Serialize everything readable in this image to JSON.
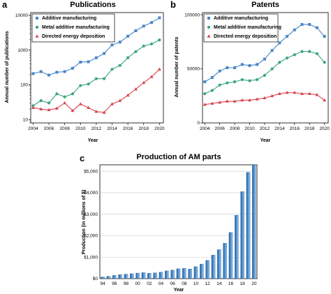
{
  "chart_data": [
    {
      "panel": "a",
      "type": "line",
      "title": "Publications",
      "xlabel": "Year",
      "ylabel": "Annual number of publications",
      "yscale": "log",
      "ylim": [
        8,
        12000
      ],
      "xlim": [
        2003.7,
        2020.5
      ],
      "x_ticks": [
        2004,
        2006,
        2008,
        2010,
        2012,
        2014,
        2016,
        2018,
        2020
      ],
      "y_ticks": [
        10,
        100,
        1000,
        10000
      ],
      "x": [
        2004,
        2005,
        2006,
        2007,
        2008,
        2009,
        2010,
        2011,
        2012,
        2013,
        2014,
        2015,
        2016,
        2017,
        2018,
        2019,
        2020
      ],
      "legend_position": "top-left",
      "series": [
        {
          "name": "Additive manufacturing",
          "color": "#4a86c8",
          "marker": "square",
          "values": [
            210,
            240,
            190,
            230,
            240,
            300,
            450,
            460,
            600,
            800,
            1400,
            1700,
            2500,
            3600,
            4900,
            6200,
            8500
          ]
        },
        {
          "name": "Metal additive manufacturing",
          "color": "#3aa67a",
          "marker": "circle",
          "values": [
            25,
            35,
            30,
            55,
            45,
            55,
            95,
            105,
            150,
            150,
            280,
            360,
            600,
            900,
            1300,
            1500,
            1950
          ]
        },
        {
          "name": "Directed energy deposition",
          "color": "#d9444c",
          "marker": "triangle",
          "values": [
            22,
            20,
            19,
            21,
            30,
            18,
            28,
            22,
            17,
            16,
            28,
            35,
            50,
            75,
            115,
            170,
            280
          ]
        }
      ]
    },
    {
      "panel": "b",
      "type": "line",
      "title": "Patents",
      "xlabel": "Year",
      "ylabel": "Annual number of patents",
      "yscale": "linear",
      "ylim": [
        0,
        102000
      ],
      "xlim": [
        2003.7,
        2020.5
      ],
      "x_ticks": [
        2004,
        2006,
        2008,
        2010,
        2012,
        2014,
        2016,
        2018,
        2020
      ],
      "y_ticks": [
        0,
        50000,
        100000
      ],
      "x": [
        2004,
        2005,
        2006,
        2007,
        2008,
        2009,
        2010,
        2011,
        2012,
        2013,
        2014,
        2015,
        2016,
        2017,
        2018,
        2019,
        2020
      ],
      "legend_position": "top-left",
      "series": [
        {
          "name": "Additive manufacturing",
          "color": "#4a86c8",
          "marker": "square",
          "values": [
            38000,
            42000,
            48000,
            51000,
            51000,
            54000,
            53000,
            54000,
            59000,
            67000,
            74000,
            80000,
            86000,
            91000,
            91000,
            88000,
            80000
          ]
        },
        {
          "name": "Metal additive manufacturing",
          "color": "#3aa67a",
          "marker": "circle",
          "values": [
            27000,
            30000,
            35000,
            37000,
            38000,
            40000,
            39000,
            40000,
            44000,
            50000,
            56000,
            60000,
            63000,
            66000,
            66000,
            64000,
            56000
          ]
        },
        {
          "name": "Directed energy deposition",
          "color": "#d9444c",
          "marker": "triangle",
          "values": [
            17000,
            18000,
            19000,
            20000,
            20000,
            21000,
            21000,
            22000,
            23000,
            25000,
            27000,
            28000,
            28000,
            27000,
            27000,
            26000,
            21000
          ]
        }
      ]
    },
    {
      "panel": "c",
      "type": "bar",
      "title": "Production of AM parts",
      "xlabel": "Year",
      "ylabel": "Production (in millions of $)",
      "ylim": [
        0,
        5300
      ],
      "y_ticks": [
        0,
        1000,
        2000,
        3000,
        4000,
        5000
      ],
      "y_tick_labels": [
        "$0",
        "$1,000",
        "$2,000",
        "$3,000",
        "$4,000",
        "$5,000"
      ],
      "categories": [
        "94",
        "95",
        "96",
        "97",
        "98",
        "99",
        "00",
        "01",
        "02",
        "03",
        "04",
        "05",
        "06",
        "07",
        "08",
        "09",
        "10",
        "11",
        "12",
        "13",
        "14",
        "15",
        "16",
        "17",
        "18",
        "19",
        "20"
      ],
      "tick_labels": [
        "94",
        "96",
        "98",
        "00",
        "02",
        "04",
        "06",
        "08",
        "10",
        "12",
        "14",
        "16",
        "18",
        "20"
      ],
      "bar_color": "#4a8fd0",
      "values": [
        80,
        110,
        150,
        190,
        210,
        230,
        260,
        280,
        250,
        270,
        300,
        360,
        400,
        460,
        480,
        450,
        560,
        680,
        850,
        1100,
        1350,
        1650,
        2150,
        2950,
        4050,
        4950,
        5300
      ]
    }
  ]
}
